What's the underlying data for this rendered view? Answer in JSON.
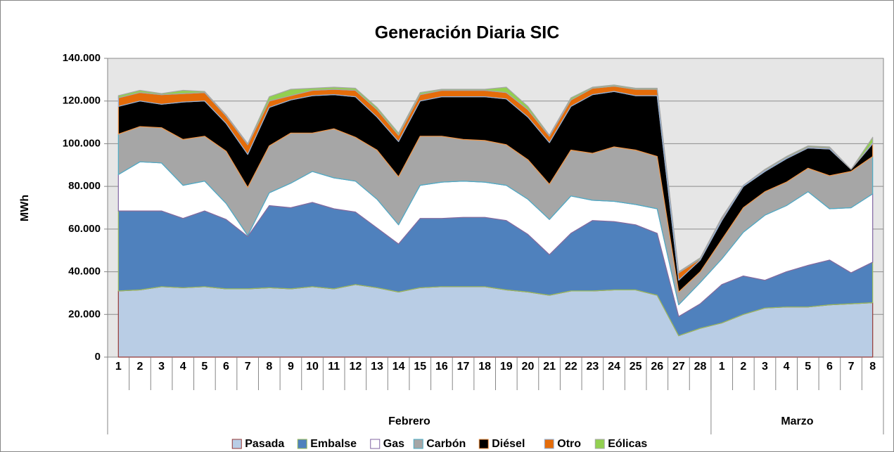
{
  "chart_data": {
    "type": "stacked_area",
    "title": "Generación Diaria SIC",
    "y_label": "MWh",
    "groups": [
      {
        "name": "Febrero",
        "categories": [
          "1",
          "2",
          "3",
          "4",
          "5",
          "6",
          "7",
          "8",
          "9",
          "10",
          "11",
          "12",
          "13",
          "14",
          "15",
          "16",
          "17",
          "18",
          "19",
          "20",
          "21",
          "22",
          "23",
          "24",
          "25",
          "26",
          "27",
          "28"
        ]
      },
      {
        "name": "Marzo",
        "categories": [
          "1",
          "2",
          "3",
          "4",
          "5",
          "6",
          "7",
          "8"
        ]
      }
    ],
    "ylim": [
      0,
      140000
    ],
    "yticks": [
      0,
      {
        "value": 20000,
        "label": "20.000"
      },
      {
        "value": 40000,
        "label": "40.000"
      },
      {
        "value": 60000,
        "label": "60.000"
      },
      {
        "value": 80000,
        "label": "80.000"
      },
      {
        "value": 100000,
        "label": "100.000"
      },
      {
        "value": 120000,
        "label": "120.000"
      },
      {
        "value": 140000,
        "label": "140.000"
      }
    ],
    "grid": true,
    "legend": "bottom",
    "series": [
      {
        "name": "Pasada",
        "color": "#b9cde5",
        "stroke": "#953735",
        "values": [
          31000,
          31500,
          33000,
          32500,
          33000,
          32000,
          32000,
          32500,
          32000,
          33000,
          32000,
          34000,
          32500,
          30500,
          32500,
          33000,
          33000,
          33000,
          31500,
          30500,
          29000,
          31000,
          31000,
          31500,
          31500,
          29000,
          10000,
          13500,
          16000,
          20000,
          23000,
          23500,
          23500,
          24500,
          25000,
          25500
        ]
      },
      {
        "name": "Embalse",
        "color": "#4f81bd",
        "stroke": "#9bbb59",
        "values": [
          37500,
          37000,
          35500,
          32500,
          35500,
          32500,
          24500,
          38500,
          38000,
          39500,
          37500,
          34000,
          28000,
          22500,
          32500,
          32000,
          32500,
          32500,
          32500,
          27000,
          19000,
          27000,
          33000,
          32000,
          30500,
          29000,
          9000,
          11500,
          18000,
          18000,
          13000,
          16500,
          19500,
          21000,
          14500,
          19000
        ]
      },
      {
        "name": "Gas",
        "color": "#ffffff",
        "stroke": "#8064a2",
        "values": [
          17000,
          23000,
          22500,
          15500,
          14000,
          7500,
          500,
          6000,
          11500,
          14500,
          14500,
          14500,
          13500,
          9000,
          15500,
          17000,
          17000,
          16500,
          16500,
          16500,
          16500,
          17500,
          9500,
          9500,
          9500,
          11500,
          5500,
          10000,
          12000,
          20500,
          30500,
          31000,
          34500,
          24000,
          30500,
          32000
        ]
      },
      {
        "name": "Carbón",
        "color": "#a6a6a6",
        "stroke": "#4bacc6",
        "values": [
          19000,
          16500,
          16500,
          21500,
          21000,
          24500,
          22500,
          22000,
          23500,
          18000,
          23000,
          20500,
          23000,
          22500,
          23000,
          21500,
          19500,
          19500,
          19000,
          18500,
          16500,
          21500,
          22000,
          25500,
          25500,
          24500,
          6000,
          5000,
          9000,
          11500,
          11000,
          11000,
          11000,
          15500,
          17000,
          17500
        ]
      },
      {
        "name": "Diésel",
        "color": "#000000",
        "stroke": "#f79646",
        "values": [
          13000,
          12000,
          11000,
          17500,
          16500,
          13000,
          15500,
          18000,
          15500,
          17500,
          16000,
          19000,
          15500,
          16500,
          16500,
          18500,
          20000,
          20500,
          21500,
          20000,
          19500,
          20500,
          27500,
          26000,
          25500,
          28500,
          5500,
          5500,
          9000,
          10000,
          9500,
          11000,
          9500,
          12500,
          1000,
          6000
        ]
      },
      {
        "name": "Otro",
        "color": "#e46c0a",
        "stroke": "#8eb4e3",
        "values": [
          4000,
          4000,
          4500,
          4000,
          4000,
          3500,
          4500,
          3000,
          2000,
          2500,
          2500,
          3000,
          3500,
          3000,
          3000,
          3000,
          3000,
          3000,
          3000,
          3500,
          3000,
          3000,
          3000,
          2500,
          3000,
          3000,
          3500,
          500,
          1000,
          500,
          500,
          500,
          500,
          500,
          0,
          500
        ]
      },
      {
        "name": "Eólicas",
        "color": "#92d050",
        "stroke": "#a6a6a6",
        "values": [
          1000,
          1000,
          500,
          1500,
          500,
          500,
          500,
          2000,
          3000,
          1000,
          1000,
          1000,
          1000,
          1000,
          1000,
          500,
          500,
          500,
          2500,
          1500,
          500,
          1000,
          500,
          500,
          500,
          500,
          500,
          500,
          500,
          0,
          500,
          500,
          500,
          500,
          0,
          2500
        ]
      }
    ]
  }
}
